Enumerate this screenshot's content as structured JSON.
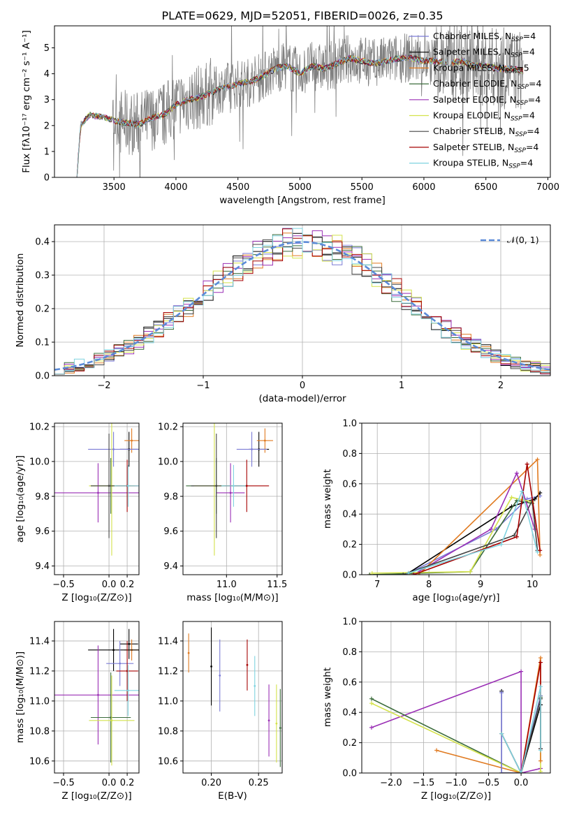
{
  "figure_title": "PLATE=0629, MJD=52051, FIBERID=0026, z=0.35",
  "model_colors": [
    "#7b7bd6",
    "#000000",
    "#e07a20",
    "#3a6b3a",
    "#9a2fb5",
    "#d4e24b",
    "#444444",
    "#a60000",
    "#7fd3e0"
  ],
  "chart_data": [
    {
      "id": "spectrum",
      "type": "line",
      "xlabel": "wavelength [Angstrom, rest frame]",
      "ylabel": "Flux [fλ10⁻¹⁷ erg cm⁻² s⁻¹ A⁻¹]",
      "xlim": [
        3020,
        7020
      ],
      "ylim": [
        0,
        5.85
      ],
      "xticks": [
        3500,
        4000,
        4500,
        5000,
        5500,
        6000,
        6500,
        7000
      ],
      "yticks": [
        0,
        1,
        2,
        3,
        4,
        5
      ],
      "grid": false,
      "legend_position": "upper-right",
      "continuum": {
        "x": [
          3200,
          3230,
          3300,
          3400,
          3500,
          3600,
          3700,
          3800,
          3900,
          3950,
          4000,
          4100,
          4200,
          4300,
          4400,
          4500,
          4600,
          4700,
          4800,
          4900,
          5000,
          5100,
          5200,
          5300,
          5400,
          5500,
          5600,
          5700,
          5800,
          5900,
          6000,
          6100,
          6200,
          6300,
          6400,
          6500,
          6600,
          6700,
          6800
        ],
        "y": [
          0,
          2.0,
          2.4,
          2.35,
          2.2,
          2.1,
          2.05,
          2.3,
          2.4,
          2.6,
          2.8,
          3.0,
          3.1,
          3.3,
          3.5,
          3.6,
          3.7,
          3.9,
          4.2,
          4.3,
          4.0,
          4.3,
          4.2,
          4.4,
          4.6,
          4.5,
          4.4,
          4.5,
          4.6,
          4.6,
          4.5,
          4.5,
          4.4,
          4.5,
          4.3,
          4.3,
          4.2,
          4.2,
          4.1
        ]
      },
      "legend": [
        "Chabrier MILES, N_SSP=4",
        "Salpeter MILES, N_SSP=4",
        "Kroupa MILES, N_SSP=5",
        "Chabrier ELODIE, N_SSP=4",
        "Salpeter ELODIE, N_SSP=4",
        "Kroupa ELODIE, N_SSP=4",
        "Chabrier STELIB, N_SSP=4",
        "Salpeter STELIB, N_SSP=4",
        "Kroupa STELIB, N_SSP=4"
      ]
    },
    {
      "id": "residuals",
      "type": "line",
      "xlabel": "(data-model)/error",
      "ylabel": "Normed distribution",
      "xlim": [
        -2.5,
        2.5
      ],
      "ylim": [
        0,
        0.45
      ],
      "xticks": [
        -2,
        -1,
        0,
        1,
        2
      ],
      "yticks": [
        0.0,
        0.1,
        0.2,
        0.3,
        0.4
      ],
      "grid": true,
      "legend_position": "upper-right",
      "gaussian_label": "𝒩(0, 1)",
      "gaussian_color": "#5b8bd8",
      "bin_width": 0.1
    },
    {
      "id": "age-vs-z",
      "type": "scatter",
      "xlabel": "Z [log₁₀(Z/Z⊙)]",
      "ylabel": "age  [log₁₀(age/yr)]",
      "xlim": [
        -0.6,
        0.33
      ],
      "ylim": [
        9.35,
        10.22
      ],
      "xticks": [
        -0.5,
        0.0,
        0.2
      ],
      "yticks": [
        9.4,
        9.6,
        9.8,
        10.0,
        10.2
      ],
      "grid": true,
      "points": [
        {
          "x": 0.22,
          "xerr": 0.1,
          "y": 10.07,
          "yerr": 0.1,
          "c": 1
        },
        {
          "x": 0.25,
          "xerr": 0.08,
          "y": 10.12,
          "yerr": 0.07,
          "c": 2
        },
        {
          "x": 0.05,
          "xerr": 0.28,
          "y": 10.07,
          "yerr": 0.1,
          "c": 0
        },
        {
          "x": -0.12,
          "xerr": 0.48,
          "y": 9.82,
          "yerr": 0.17,
          "c": 4
        },
        {
          "x": 0.02,
          "xerr": 0.22,
          "y": 9.86,
          "yerr": 0.16,
          "c": 3
        },
        {
          "x": 0.03,
          "xerr": 0.25,
          "y": 9.86,
          "yerr": 0.4,
          "c": 5
        },
        {
          "x": 0.0,
          "xerr": 0.2,
          "y": 9.86,
          "yerr": 0.3,
          "c": 6
        },
        {
          "x": 0.2,
          "xerr": 0.12,
          "y": 9.86,
          "yerr": 0.15,
          "c": 7
        },
        {
          "x": 0.21,
          "xerr": 0.15,
          "y": 9.86,
          "yerr": 0.12,
          "c": 8
        }
      ]
    },
    {
      "id": "age-vs-mass",
      "type": "scatter",
      "xlabel": "mass [log₁₀(M/M⊙)]",
      "ylabel": "",
      "xlim": [
        10.57,
        11.55
      ],
      "ylim": [
        9.35,
        10.22
      ],
      "xticks": [
        11.0,
        11.5
      ],
      "yticks": [
        9.4,
        9.6,
        9.8,
        10.0,
        10.2
      ],
      "grid": true,
      "points": [
        {
          "x": 11.32,
          "xerr": 0.1,
          "y": 10.07,
          "yerr": 0.1,
          "c": 1
        },
        {
          "x": 11.38,
          "xerr": 0.08,
          "y": 10.12,
          "yerr": 0.07,
          "c": 2
        },
        {
          "x": 11.25,
          "xerr": 0.15,
          "y": 10.07,
          "yerr": 0.1,
          "c": 0
        },
        {
          "x": 11.04,
          "xerr": 0.14,
          "y": 9.82,
          "yerr": 0.17,
          "c": 4
        },
        {
          "x": 10.9,
          "xerr": 0.3,
          "y": 9.86,
          "yerr": 0.16,
          "c": 3
        },
        {
          "x": 10.88,
          "xerr": 0.2,
          "y": 9.86,
          "yerr": 0.4,
          "c": 5
        },
        {
          "x": 10.9,
          "xerr": 0.25,
          "y": 9.86,
          "yerr": 0.3,
          "c": 6
        },
        {
          "x": 11.2,
          "xerr": 0.22,
          "y": 9.86,
          "yerr": 0.15,
          "c": 7
        },
        {
          "x": 11.07,
          "xerr": 0.12,
          "y": 9.86,
          "yerr": 0.12,
          "c": 8
        }
      ]
    },
    {
      "id": "mass-weight-vs-age",
      "type": "line",
      "xlabel": "age  [log₁₀(age/yr)]",
      "ylabel": "mass weight",
      "xlim": [
        6.7,
        10.35
      ],
      "ylim": [
        0,
        1.0
      ],
      "xticks": [
        7,
        8,
        9,
        10
      ],
      "yticks": [
        0.0,
        0.2,
        0.4,
        0.6,
        0.8,
        1.0
      ],
      "grid": true,
      "series": [
        {
          "c": 0,
          "x": [
            7.55,
            9.3,
            9.9,
            10.15
          ],
          "y": [
            0.0,
            0.3,
            0.5,
            0.52
          ]
        },
        {
          "c": 1,
          "x": [
            7.6,
            9.6,
            10.05,
            10.15
          ],
          "y": [
            0.01,
            0.45,
            0.5,
            0.54
          ]
        },
        {
          "c": 2,
          "x": [
            6.85,
            7.8,
            10.1,
            10.15
          ],
          "y": [
            0.0,
            0.0,
            0.76,
            0.13
          ]
        },
        {
          "c": 3,
          "x": [
            6.85,
            8.8,
            9.7,
            10.0
          ],
          "y": [
            0.0,
            0.02,
            0.49,
            0.47
          ]
        },
        {
          "c": 4,
          "x": [
            7.7,
            9.2,
            9.7,
            10.05
          ],
          "y": [
            0.0,
            0.3,
            0.67,
            0.3
          ]
        },
        {
          "c": 5,
          "x": [
            6.9,
            8.8,
            9.6,
            10.0
          ],
          "y": [
            0.01,
            0.02,
            0.51,
            0.48
          ]
        },
        {
          "c": 6,
          "x": [
            7.5,
            9.65,
            10.0,
            10.1
          ],
          "y": [
            0.0,
            0.26,
            0.49,
            0.16
          ]
        },
        {
          "c": 7,
          "x": [
            7.7,
            9.7,
            9.9,
            10.15
          ],
          "y": [
            0.0,
            0.25,
            0.73,
            0.16
          ]
        },
        {
          "c": 8,
          "x": [
            7.6,
            9.4,
            9.8,
            10.1
          ],
          "y": [
            0.01,
            0.2,
            0.55,
            0.15
          ]
        }
      ]
    },
    {
      "id": "mass-vs-z",
      "type": "scatter",
      "xlabel": "Z [log₁₀(Z/Z⊙)]",
      "ylabel": "mass [log₁₀(M/M⊙)]",
      "xlim": [
        -0.6,
        0.33
      ],
      "ylim": [
        10.52,
        11.53
      ],
      "xticks": [
        -0.5,
        0.0,
        0.2
      ],
      "yticks": [
        10.6,
        10.8,
        11.0,
        11.2,
        11.4
      ],
      "grid": true,
      "points": [
        {
          "x": 0.22,
          "xerr": 0.1,
          "y": 11.38,
          "yerr": 0.1,
          "c": 1
        },
        {
          "x": 0.25,
          "xerr": 0.08,
          "y": 11.34,
          "yerr": 0.07,
          "c": 2
        },
        {
          "x": 0.05,
          "xerr": 0.28,
          "y": 11.34,
          "yerr": 0.14,
          "c": 1
        },
        {
          "x": 0.12,
          "xerr": 0.15,
          "y": 11.25,
          "yerr": 0.15,
          "c": 0
        },
        {
          "x": -0.12,
          "xerr": 0.48,
          "y": 11.04,
          "yerr": 0.33,
          "c": 4
        },
        {
          "x": 0.02,
          "xerr": 0.22,
          "y": 10.89,
          "yerr": 0.3,
          "c": 3
        },
        {
          "x": 0.03,
          "xerr": 0.25,
          "y": 10.87,
          "yerr": 0.3,
          "c": 5
        },
        {
          "x": 0.2,
          "xerr": 0.12,
          "y": 11.2,
          "yerr": 0.2,
          "c": 7
        },
        {
          "x": 0.21,
          "xerr": 0.15,
          "y": 11.07,
          "yerr": 0.17,
          "c": 8
        }
      ]
    },
    {
      "id": "mass-vs-ebv",
      "type": "scatter",
      "xlabel": "E(B-V)",
      "ylabel": "",
      "xlim": [
        0.17,
        0.275
      ],
      "ylim": [
        10.52,
        11.53
      ],
      "xticks": [
        0.2,
        0.25
      ],
      "yticks": [
        10.6,
        10.8,
        11.0,
        11.2,
        11.4
      ],
      "grid": true,
      "points": [
        {
          "x": 0.176,
          "y": 11.32,
          "yerr": 0.13,
          "c": 2
        },
        {
          "x": 0.2,
          "y": 11.23,
          "yerr": 0.26,
          "c": 1
        },
        {
          "x": 0.209,
          "y": 11.17,
          "yerr": 0.24,
          "c": 0
        },
        {
          "x": 0.238,
          "y": 11.24,
          "yerr": 0.17,
          "c": 7
        },
        {
          "x": 0.246,
          "y": 11.1,
          "yerr": 0.2,
          "c": 8
        },
        {
          "x": 0.261,
          "y": 10.87,
          "yerr": 0.24,
          "c": 4
        },
        {
          "x": 0.269,
          "y": 10.85,
          "yerr": 0.26,
          "c": 5
        },
        {
          "x": 0.273,
          "y": 10.82,
          "yerr": 0.26,
          "c": 3
        }
      ]
    },
    {
      "id": "mass-weight-vs-z",
      "type": "line",
      "xlabel": "Z [log₁₀(Z/Z⊙)]",
      "ylabel": "mass weight",
      "xlim": [
        -2.45,
        0.45
      ],
      "ylim": [
        0,
        1.0
      ],
      "xticks": [
        -2.0,
        -1.5,
        -1.0,
        -0.5,
        0.0
      ],
      "yticks": [
        0.0,
        0.2,
        0.4,
        0.6,
        0.8,
        1.0
      ],
      "grid": true,
      "series": [
        {
          "c": 4,
          "x": [
            -2.3,
            0.0,
            0.0,
            0.3
          ],
          "y": [
            0.3,
            0.67,
            0.0,
            0.03
          ]
        },
        {
          "c": 3,
          "x": [
            -2.3,
            0.0,
            0.3,
            0.3
          ],
          "y": [
            0.49,
            0.0,
            0.49,
            0.5
          ]
        },
        {
          "c": 5,
          "x": [
            -2.3,
            0.0,
            0.3,
            0.3
          ],
          "y": [
            0.46,
            0.0,
            0.51,
            0.01
          ]
        },
        {
          "c": 2,
          "x": [
            -1.3,
            0.0,
            0.3,
            0.3
          ],
          "y": [
            0.15,
            0.0,
            0.76,
            0.08
          ]
        },
        {
          "c": 1,
          "x": [
            -0.3,
            -0.3,
            0.0,
            0.3
          ],
          "y": [
            0.54,
            0.0,
            0.0,
            0.45
          ]
        },
        {
          "c": 0,
          "x": [
            -0.3,
            -0.3,
            0.0,
            0.3
          ],
          "y": [
            0.53,
            0.0,
            0.0,
            0.51
          ]
        },
        {
          "c": 7,
          "x": [
            -0.3,
            0.0,
            0.3,
            0.3
          ],
          "y": [
            0.26,
            0.0,
            0.73,
            0.16
          ]
        },
        {
          "c": 6,
          "x": [
            -0.3,
            0.0,
            0.3,
            0.3
          ],
          "y": [
            0.26,
            0.0,
            0.49,
            0.16
          ]
        },
        {
          "c": 8,
          "x": [
            -0.3,
            0.0,
            0.3,
            0.3
          ],
          "y": [
            0.26,
            0.0,
            0.57,
            0.15
          ]
        }
      ]
    }
  ]
}
